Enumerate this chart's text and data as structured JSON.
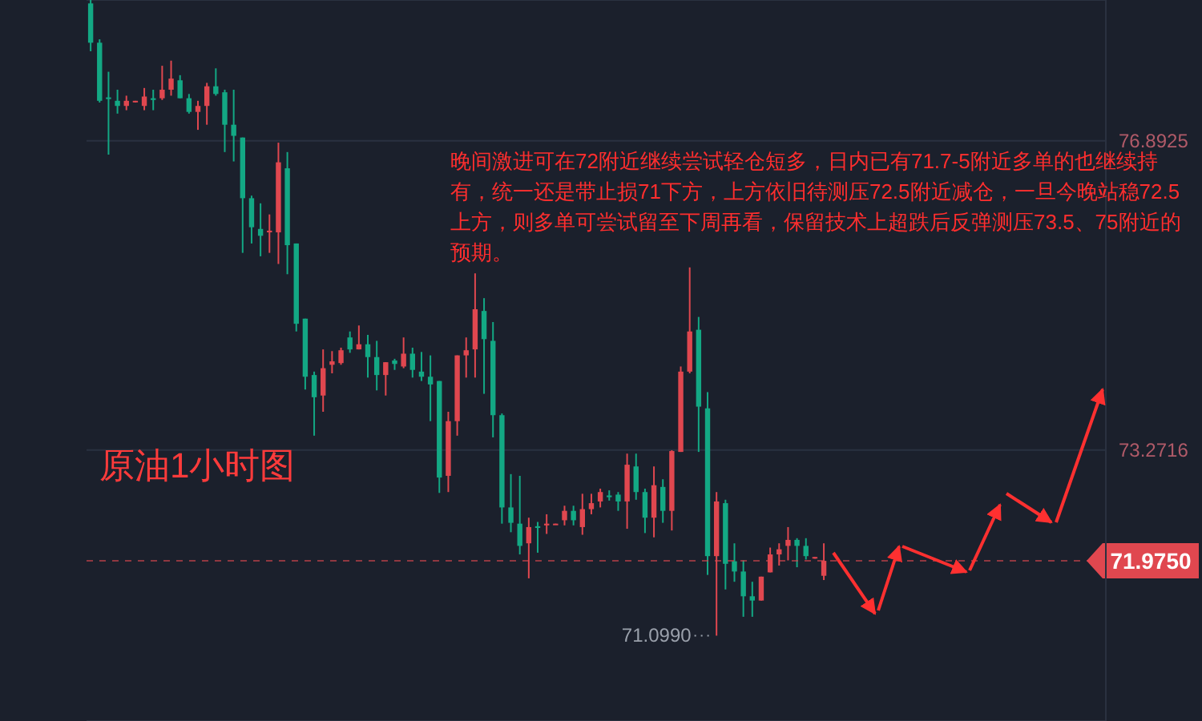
{
  "chart_data": {
    "type": "candlestick",
    "categories": [
      null,
      null,
      null,
      null,
      null,
      null,
      null,
      null,
      null,
      null,
      null,
      null,
      null,
      null,
      null,
      null,
      null,
      null,
      null,
      null,
      null,
      null,
      null,
      null,
      null,
      null,
      null,
      null,
      null,
      null,
      null,
      null,
      null,
      null,
      null,
      null,
      null,
      null,
      null,
      null,
      null,
      null,
      null,
      null,
      null,
      null,
      null,
      null,
      null,
      null,
      null,
      null,
      null,
      null,
      null,
      null,
      null,
      null,
      null,
      null,
      null,
      null,
      null,
      null,
      null,
      null,
      null,
      null,
      null,
      null,
      null,
      null,
      null,
      null,
      null,
      null,
      null,
      null,
      null,
      null,
      null,
      null,
      null,
      null,
      null,
      null,
      null,
      null,
      null,
      null,
      null,
      null,
      null,
      null,
      null,
      null,
      null,
      null,
      null,
      null,
      null,
      null,
      null,
      null,
      null,
      null,
      null,
      null,
      null,
      null,
      null,
      null,
      null,
      null
    ],
    "ohlc": [
      [
        78.5,
        78.54,
        77.94,
        78.04
      ],
      [
        78.04,
        78.08,
        77.34,
        77.36
      ],
      [
        77.4,
        77.7,
        76.73,
        77.38
      ],
      [
        77.36,
        77.49,
        77.21,
        77.3
      ],
      [
        77.3,
        77.42,
        77.25,
        77.36
      ],
      [
        77.35,
        77.36,
        77.34,
        77.36
      ],
      [
        77.3,
        77.51,
        77.25,
        77.41
      ],
      [
        77.39,
        77.49,
        77.25,
        77.37
      ],
      [
        77.39,
        77.77,
        77.37,
        77.49
      ],
      [
        77.49,
        77.83,
        77.42,
        77.62
      ],
      [
        77.6,
        77.66,
        77.39,
        77.39
      ],
      [
        77.39,
        77.44,
        77.21,
        77.23
      ],
      [
        77.23,
        77.36,
        77.02,
        77.3
      ],
      [
        77.3,
        77.57,
        77.08,
        77.53
      ],
      [
        77.53,
        77.74,
        77.42,
        77.44
      ],
      [
        77.46,
        77.49,
        76.76,
        77.08
      ],
      [
        77.08,
        77.49,
        76.65,
        76.95
      ],
      [
        76.93,
        76.93,
        75.58,
        76.22
      ],
      [
        76.22,
        76.25,
        75.69,
        75.88
      ],
      [
        75.86,
        76.16,
        75.54,
        75.78
      ],
      [
        75.82,
        76.03,
        75.58,
        75.84
      ],
      [
        75.82,
        76.87,
        75.45,
        76.64
      ],
      [
        76.57,
        76.76,
        75.33,
        75.67
      ],
      [
        75.69,
        75.69,
        74.66,
        74.75
      ],
      [
        74.81,
        74.81,
        73.98,
        74.13
      ],
      [
        74.15,
        74.19,
        73.44,
        73.89
      ],
      [
        73.91,
        74.45,
        73.72,
        74.23
      ],
      [
        74.27,
        74.43,
        74.17,
        74.31
      ],
      [
        74.29,
        74.47,
        74.27,
        74.44
      ],
      [
        74.59,
        74.66,
        74.41,
        74.45
      ],
      [
        74.45,
        74.73,
        74.45,
        74.51
      ],
      [
        74.51,
        74.62,
        74.12,
        74.36
      ],
      [
        74.36,
        74.55,
        73.97,
        74.15
      ],
      [
        74.15,
        74.3,
        73.91,
        74.3
      ],
      [
        74.32,
        74.34,
        74.21,
        74.28
      ],
      [
        74.25,
        74.59,
        74.23,
        74.4
      ],
      [
        74.4,
        74.47,
        74.12,
        74.21
      ],
      [
        74.19,
        74.42,
        74.08,
        74.13
      ],
      [
        74.13,
        74.38,
        73.61,
        74.04
      ],
      [
        74.08,
        74.08,
        72.77,
        72.95
      ],
      [
        72.97,
        73.72,
        72.78,
        73.61
      ],
      [
        73.61,
        74.38,
        73.44,
        74.38
      ],
      [
        74.38,
        74.59,
        74.12,
        74.44
      ],
      [
        74.45,
        75.34,
        74.12,
        74.92
      ],
      [
        74.9,
        75.05,
        73.93,
        74.57
      ],
      [
        74.55,
        74.77,
        73.42,
        73.68
      ],
      [
        73.68,
        73.7,
        72.41,
        72.6
      ],
      [
        72.6,
        72.99,
        72.31,
        72.42
      ],
      [
        72.41,
        72.97,
        72.05,
        72.15
      ],
      [
        72.18,
        72.48,
        71.77,
        72.37
      ],
      [
        72.38,
        72.43,
        72.07,
        72.36
      ],
      [
        72.39,
        72.52,
        72.29,
        72.41
      ],
      [
        72.4,
        72.41,
        72.4,
        72.41
      ],
      [
        72.45,
        72.62,
        72.39,
        72.56
      ],
      [
        72.56,
        72.62,
        72.39,
        72.45
      ],
      [
        72.37,
        72.76,
        72.28,
        72.58
      ],
      [
        72.58,
        72.76,
        72.52,
        72.65
      ],
      [
        72.67,
        72.82,
        72.6,
        72.78
      ],
      [
        72.74,
        72.8,
        72.68,
        72.72
      ],
      [
        72.75,
        72.78,
        72.56,
        72.67
      ],
      [
        72.67,
        73.23,
        72.35,
        73.1
      ],
      [
        73.08,
        73.23,
        72.69,
        72.78
      ],
      [
        72.78,
        72.82,
        72.3,
        72.48
      ],
      [
        72.48,
        73.08,
        72.25,
        72.86
      ],
      [
        72.84,
        72.93,
        72.42,
        72.56
      ],
      [
        72.56,
        73.27,
        72.33,
        73.26
      ],
      [
        73.25,
        74.25,
        73.25,
        74.19
      ],
      [
        74.19,
        75.41,
        74.17,
        74.66
      ],
      [
        74.68,
        74.83,
        73.25,
        73.78
      ],
      [
        73.76,
        73.95,
        71.81,
        72.03
      ],
      [
        72.03,
        72.78,
        71.099,
        72.67
      ],
      [
        72.65,
        72.69,
        71.64,
        71.94
      ],
      [
        71.97,
        72.18,
        71.73,
        71.85
      ],
      [
        71.85,
        71.98,
        71.32,
        71.56
      ],
      [
        71.56,
        71.73,
        71.32,
        71.51
      ],
      [
        71.51,
        71.79,
        71.51,
        71.79
      ],
      [
        71.84,
        72.13,
        71.84,
        72.05
      ],
      [
        72.05,
        72.18,
        71.92,
        72.11
      ],
      [
        72.15,
        72.37,
        71.98,
        72.22
      ],
      [
        72.22,
        72.24,
        71.9,
        72.15
      ],
      [
        72.15,
        72.24,
        71.99,
        72.03
      ],
      [
        72.01,
        72.02,
        72.0,
        72.02
      ],
      [
        71.8,
        72.18,
        71.75,
        71.975
      ],
      null,
      null,
      null,
      null,
      null,
      null,
      null,
      null,
      null,
      null,
      null,
      null,
      null,
      null,
      null,
      null,
      null,
      null,
      null,
      null,
      null,
      null,
      null,
      null,
      null,
      null,
      null,
      null,
      null,
      null,
      null
    ],
    "colors": [
      "#13a884",
      "#13a884",
      "#13a884",
      "#13a884",
      "#e0474f",
      "#e0474f",
      "#e0474f",
      "#13a884",
      "#e0474f",
      "#e0474f",
      "#13a884",
      "#13a884",
      "#e0474f",
      "#e0474f",
      "#13a884",
      "#13a884",
      "#13a884",
      "#13a884",
      "#13a884",
      "#13a884",
      "#e0474f",
      "#e0474f",
      "#13a884",
      "#13a884",
      "#13a884",
      "#13a884",
      "#e0474f",
      "#e0474f",
      "#e0474f",
      "#13a884",
      "#e0474f",
      "#13a884",
      "#13a884",
      "#e0474f",
      "#13a884",
      "#e0474f",
      "#13a884",
      "#13a884",
      "#13a884",
      "#13a884",
      "#e0474f",
      "#e0474f",
      "#e0474f",
      "#e0474f",
      "#13a884",
      "#13a884",
      "#13a884",
      "#13a884",
      "#13a884",
      "#e0474f",
      "#13a884",
      "#e0474f",
      "#e0474f",
      "#e0474f",
      "#13a884",
      "#e0474f",
      "#e0474f",
      "#e0474f",
      "#13a884",
      "#13a884",
      "#e0474f",
      "#13a884",
      "#13a884",
      "#e0474f",
      "#13a884",
      "#e0474f",
      "#e0474f",
      "#e0474f",
      "#13a884",
      "#13a884",
      "#e0474f",
      "#13a884",
      "#13a884",
      "#13a884",
      "#13a884",
      "#e0474f",
      "#e0474f",
      "#e0474f",
      "#e0474f",
      "#13a884",
      "#13a884",
      "#e0474f",
      "#e0474f",
      null,
      null,
      null,
      null,
      null,
      null,
      null,
      null,
      null,
      null,
      null,
      null,
      null,
      null,
      null,
      null,
      null,
      null,
      null,
      null,
      null,
      null,
      null,
      null,
      null,
      null,
      null,
      null,
      null,
      null,
      null
    ],
    "ylim": [
      70.1,
      78.54
    ],
    "yticks": [
      76.8925,
      73.2716
    ],
    "grid": "y",
    "tick_labels": "y",
    "legend": false,
    "ref_lines": [
      {
        "axis": "y",
        "value": 71.975,
        "label": "71.9750",
        "color": "#e0474f",
        "line_style": "dashed"
      }
    ],
    "annotations": [
      "晚间激进可在72附近继续尝试轻仓短多，日内已有71.7-5附近多单的也继续持有，统一还是带止损71下方，上方依旧待测压72.5附近减仓，一旦今晚站稳72.5上方，则多单可尝试留至下周再看，保留技术上超跌后反弹测压73.5、75附近的预期。",
      "原油1小时图",
      "71.0990"
    ]
  }
}
